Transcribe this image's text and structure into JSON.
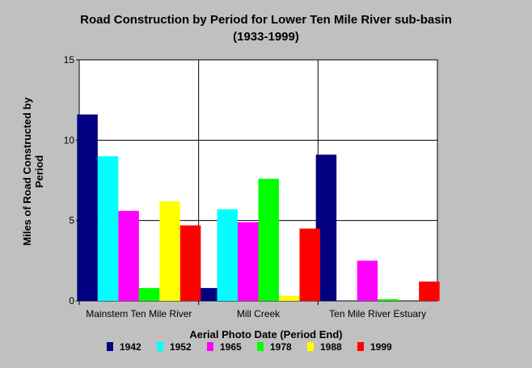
{
  "chart_data": {
    "type": "bar",
    "title": "Road Construction by Period for Lower Ten Mile River  sub-basin",
    "subtitle": "(1933-1999)",
    "xlabel": "Aerial Photo Date (Period End)",
    "ylabel": "Miles of Road Constructed by Period",
    "ylim": [
      0,
      15
    ],
    "yticks": [
      "0",
      "5",
      "10",
      "15"
    ],
    "grid": true,
    "legend_position": "bottom",
    "categories": [
      "Mainstem Ten Mile River",
      "Mill Creek",
      "Ten Mile River Estuary"
    ],
    "series": [
      {
        "name": "1942",
        "color": "#000080",
        "values": [
          11.6,
          0.8,
          9.1
        ]
      },
      {
        "name": "1952",
        "color": "#00ffff",
        "values": [
          9.0,
          5.7,
          0
        ]
      },
      {
        "name": "1965",
        "color": "#ff00ff",
        "values": [
          5.6,
          4.9,
          2.5
        ]
      },
      {
        "name": "1978",
        "color": "#00ff00",
        "values": [
          0.8,
          7.6,
          0.1
        ]
      },
      {
        "name": "1988",
        "color": "#ffff00",
        "values": [
          6.2,
          0.3,
          0
        ]
      },
      {
        "name": "1999",
        "color": "#ff0000",
        "values": [
          4.7,
          4.5,
          1.2
        ]
      }
    ]
  }
}
